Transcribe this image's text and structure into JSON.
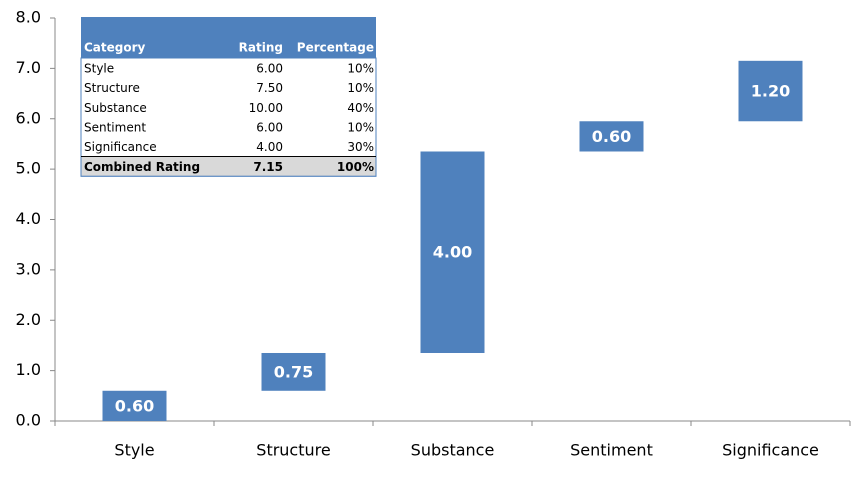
{
  "chart_data": {
    "type": "waterfall",
    "categories": [
      "Style",
      "Structure",
      "Substance",
      "Sentiment",
      "Significance"
    ],
    "values": [
      0.6,
      0.75,
      4.0,
      0.6,
      1.2
    ],
    "value_labels": [
      "0.60",
      "0.75",
      "4.00",
      "0.60",
      "1.20"
    ],
    "color": "#4f81bd",
    "ylim": [
      0,
      8
    ],
    "yticks": [
      {
        "value": 0,
        "label": "0.0"
      },
      {
        "value": 1,
        "label": "1.0"
      },
      {
        "value": 2,
        "label": "2.0"
      },
      {
        "value": 3,
        "label": "3.0"
      },
      {
        "value": 4,
        "label": "4.0"
      },
      {
        "value": 5,
        "label": "5.0"
      },
      {
        "value": 6,
        "label": "6.0"
      },
      {
        "value": 7,
        "label": "7.0"
      },
      {
        "value": 8,
        "label": "8.0"
      }
    ],
    "grid": false
  },
  "table": {
    "header": [
      "Category",
      "Rating",
      "Percentage"
    ],
    "rows": [
      [
        "Style",
        "6.00",
        "10%"
      ],
      [
        "Structure",
        "7.50",
        "10%"
      ],
      [
        "Substance",
        "10.00",
        "40%"
      ],
      [
        "Sentiment",
        "6.00",
        "10%"
      ],
      [
        "Significance",
        "4.00",
        "30%"
      ]
    ],
    "total": [
      "Combined Rating",
      "7.15",
      "100%"
    ]
  }
}
